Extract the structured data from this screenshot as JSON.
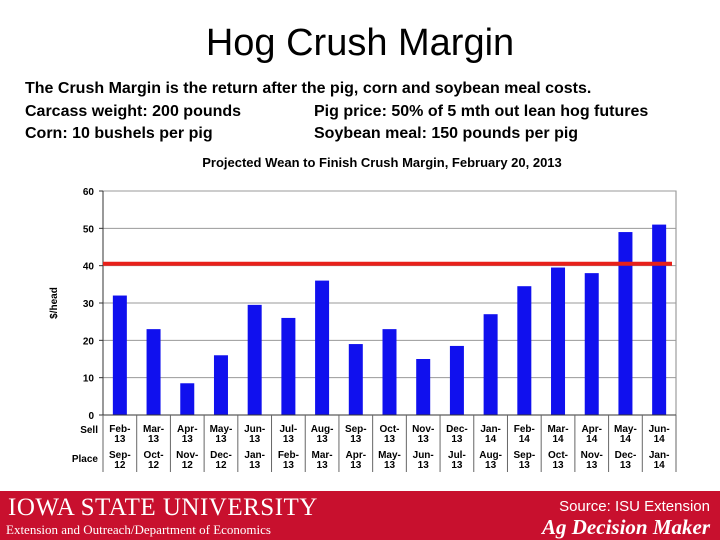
{
  "slide": {
    "title": "Hog Crush Margin",
    "description": "The Crush Margin is the return after the pig, corn and soybean meal costs.",
    "carcass": "Carcass weight:  200 pounds",
    "pig_price": "Pig price:  50% of 5 mth out lean hog futures",
    "corn": "Corn:  10 bushels per pig",
    "soy": "Soybean meal:  150 pounds per pig"
  },
  "footer": {
    "university": "IOWA STATE UNIVERSITY",
    "department": "Extension and Outreach/Department of Economics",
    "source": "Source: ISU Extension",
    "publication": "Ag Decision Maker",
    "background_color": "#c8102e"
  },
  "chart_data": {
    "type": "bar",
    "title": "Projected Wean to Finish Crush Margin, February 20, 2013",
    "ylabel": "$/head",
    "ylim": [
      0,
      60
    ],
    "yticks": [
      "0",
      "10",
      "20",
      "30",
      "40",
      "50",
      "60"
    ],
    "row_labels": [
      "Sell",
      "Place"
    ],
    "categories": [
      {
        "sell": [
          "Feb-",
          "13"
        ],
        "place": [
          "Sep-",
          "12"
        ]
      },
      {
        "sell": [
          "Mar-",
          "13"
        ],
        "place": [
          "Oct-",
          "12"
        ]
      },
      {
        "sell": [
          "Apr-",
          "13"
        ],
        "place": [
          "Nov-",
          "12"
        ]
      },
      {
        "sell": [
          "May-",
          "13"
        ],
        "place": [
          "Dec-",
          "12"
        ]
      },
      {
        "sell": [
          "Jun-",
          "13"
        ],
        "place": [
          "Jan-",
          "13"
        ]
      },
      {
        "sell": [
          "Jul-",
          "13"
        ],
        "place": [
          "Feb-",
          "13"
        ]
      },
      {
        "sell": [
          "Aug-",
          "13"
        ],
        "place": [
          "Mar-",
          "13"
        ]
      },
      {
        "sell": [
          "Sep-",
          "13"
        ],
        "place": [
          "Apr-",
          "13"
        ]
      },
      {
        "sell": [
          "Oct-",
          "13"
        ],
        "place": [
          "May-",
          "13"
        ]
      },
      {
        "sell": [
          "Nov-",
          "13"
        ],
        "place": [
          "Jun-",
          "13"
        ]
      },
      {
        "sell": [
          "Dec-",
          "13"
        ],
        "place": [
          "Jul-",
          "13"
        ]
      },
      {
        "sell": [
          "Jan-",
          "14"
        ],
        "place": [
          "Aug-",
          "13"
        ]
      },
      {
        "sell": [
          "Feb-",
          "14"
        ],
        "place": [
          "Sep-",
          "13"
        ]
      },
      {
        "sell": [
          "Mar-",
          "14"
        ],
        "place": [
          "Oct-",
          "13"
        ]
      },
      {
        "sell": [
          "Apr-",
          "14"
        ],
        "place": [
          "Nov-",
          "13"
        ]
      },
      {
        "sell": [
          "May-",
          "14"
        ],
        "place": [
          "Dec-",
          "13"
        ]
      },
      {
        "sell": [
          "Jun-",
          "14"
        ],
        "place": [
          "Jan-",
          "14"
        ]
      }
    ],
    "values": [
      32,
      23,
      8.5,
      16,
      29.5,
      26,
      36,
      19,
      23,
      15,
      18.5,
      27,
      34.5,
      39.5,
      38,
      49,
      51
    ],
    "reference_line": 40.5,
    "bar_color": "#1010ee",
    "reference_line_color": "#e8201a",
    "grid": true
  }
}
